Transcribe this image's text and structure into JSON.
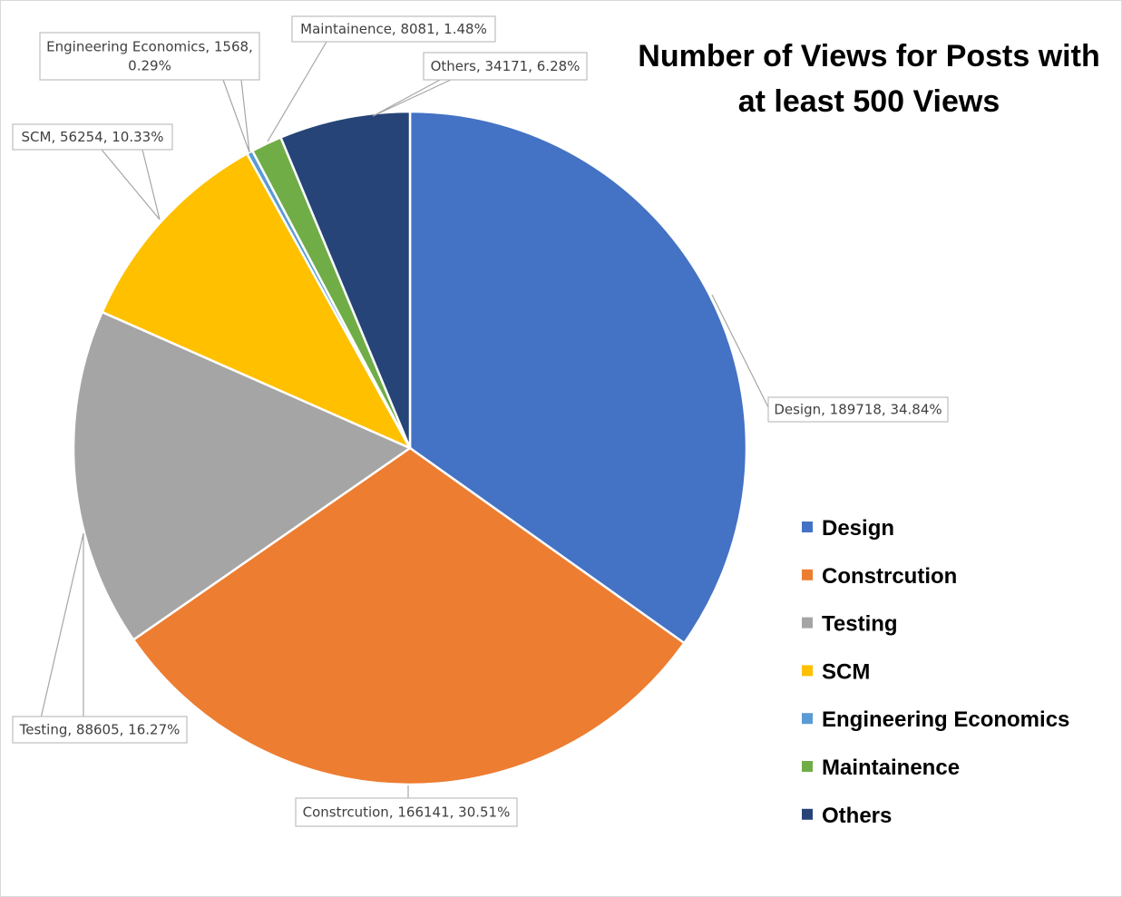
{
  "chart_data": {
    "type": "pie",
    "title": "Number of Views for Posts with at least 500 Views",
    "title_lines": [
      "Number of Views for Posts with",
      "at least 500 Views"
    ],
    "legend_position": "right",
    "slices": [
      {
        "name": "Design",
        "value": 189718,
        "percent": "34.84%",
        "color": "#4472c4",
        "label_lines": [
          "Design, 189718, 34.84%"
        ]
      },
      {
        "name": "Constrcution",
        "value": 166141,
        "percent": "30.51%",
        "color": "#ed7d31",
        "label_lines": [
          "Constrcution, 166141, 30.51%"
        ]
      },
      {
        "name": "Testing",
        "value": 88605,
        "percent": "16.27%",
        "color": "#a5a5a5",
        "label_lines": [
          "Testing, 88605, 16.27%"
        ]
      },
      {
        "name": "SCM",
        "value": 56254,
        "percent": "10.33%",
        "color": "#ffc000",
        "label_lines": [
          "SCM, 56254, 10.33%"
        ]
      },
      {
        "name": "Engineering Economics",
        "value": 1568,
        "percent": "0.29%",
        "color": "#5b9bd5",
        "label_lines": [
          "Engineering Economics, 1568,",
          "0.29%"
        ]
      },
      {
        "name": "Maintainence",
        "value": 8081,
        "percent": "1.48%",
        "color": "#70ad47",
        "label_lines": [
          "Maintainence, 8081, 1.48%"
        ]
      },
      {
        "name": "Others",
        "value": 34171,
        "percent": "6.28%",
        "color": "#264478",
        "label_lines": [
          "Others, 34171, 6.28%"
        ]
      }
    ]
  }
}
